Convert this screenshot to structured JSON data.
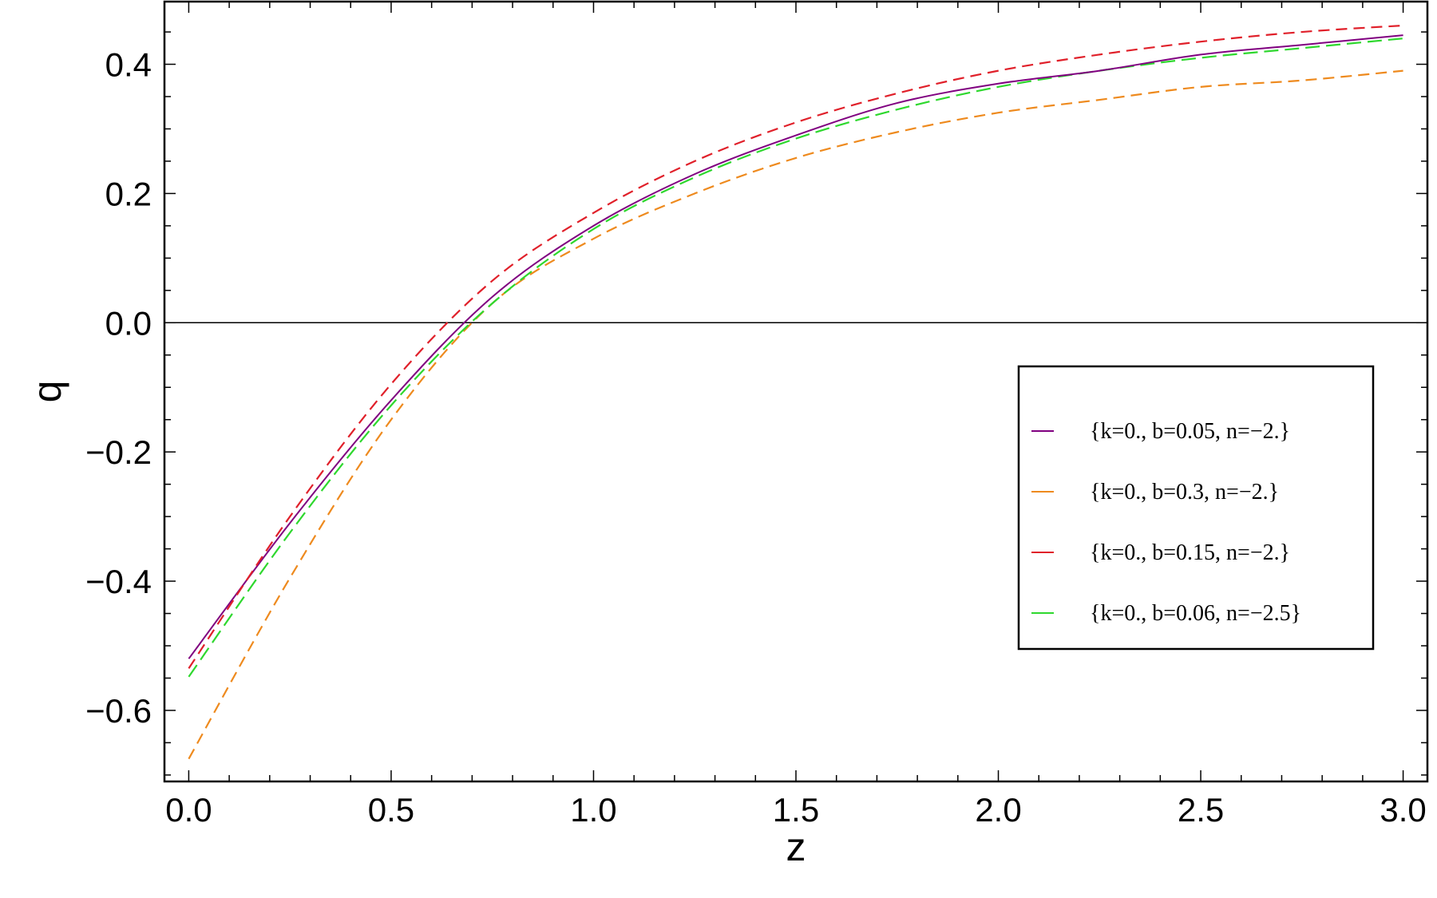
{
  "chart_data": {
    "type": "line",
    "title": "",
    "xlabel": "z",
    "ylabel": "q",
    "xlim": [
      -0.06,
      3.06
    ],
    "ylim": [
      -0.71,
      0.497
    ],
    "x_ticks": [
      {
        "value": 0.0,
        "label": "0.0"
      },
      {
        "value": 0.5,
        "label": "0.5"
      },
      {
        "value": 1.0,
        "label": "1.0"
      },
      {
        "value": 1.5,
        "label": "1.5"
      },
      {
        "value": 2.0,
        "label": "2.0"
      },
      {
        "value": 2.5,
        "label": "2.5"
      },
      {
        "value": 3.0,
        "label": "3.0"
      }
    ],
    "y_ticks": [
      {
        "value": -0.6,
        "label": "−0.6"
      },
      {
        "value": -0.4,
        "label": "−0.4"
      },
      {
        "value": -0.2,
        "label": "−0.2"
      },
      {
        "value": 0.0,
        "label": "0.0"
      },
      {
        "value": 0.2,
        "label": "0.2"
      },
      {
        "value": 0.4,
        "label": "0.4"
      }
    ],
    "grid": false,
    "zero_line": true,
    "legend_position": "right, middle",
    "series": [
      {
        "name": "{k=0., b=0.05, n=−2.}",
        "color": "#800080",
        "style": "solid",
        "x": [
          0.0,
          0.25,
          0.5,
          0.75,
          1.0,
          1.25,
          1.5,
          1.75,
          2.0,
          2.25,
          2.5,
          2.75,
          3.0
        ],
        "y": [
          -0.52,
          -0.31,
          -0.12,
          0.04,
          0.15,
          0.23,
          0.29,
          0.34,
          0.37,
          0.39,
          0.415,
          0.43,
          0.445
        ]
      },
      {
        "name": "{k=0., b=0.3, n=−2.}",
        "color": "#ee8a1e",
        "style": "dashed",
        "x": [
          0.0,
          0.25,
          0.5,
          0.75,
          1.0,
          1.25,
          1.5,
          1.75,
          2.0,
          2.25,
          2.5,
          2.75,
          3.0
        ],
        "y": [
          -0.675,
          -0.395,
          -0.15,
          0.03,
          0.13,
          0.2,
          0.255,
          0.295,
          0.325,
          0.345,
          0.365,
          0.375,
          0.39
        ]
      },
      {
        "name": "{k=0., b=0.15, n=−2.}",
        "color": "#e0202a",
        "style": "dashed",
        "x": [
          0.0,
          0.25,
          0.5,
          0.75,
          1.0,
          1.25,
          1.5,
          1.75,
          2.0,
          2.25,
          2.5,
          2.75,
          3.0
        ],
        "y": [
          -0.535,
          -0.3,
          -0.095,
          0.065,
          0.17,
          0.25,
          0.31,
          0.355,
          0.39,
          0.415,
          0.435,
          0.45,
          0.46
        ]
      },
      {
        "name": "{k=0., b=0.06, n=−2.5}",
        "color": "#2ed82e",
        "style": "dashed",
        "x": [
          0.0,
          0.25,
          0.5,
          0.75,
          1.0,
          1.25,
          1.5,
          1.75,
          2.0,
          2.25,
          2.5,
          2.75,
          3.0
        ],
        "y": [
          -0.548,
          -0.325,
          -0.128,
          0.03,
          0.145,
          0.225,
          0.285,
          0.33,
          0.365,
          0.39,
          0.41,
          0.425,
          0.44
        ]
      }
    ]
  }
}
